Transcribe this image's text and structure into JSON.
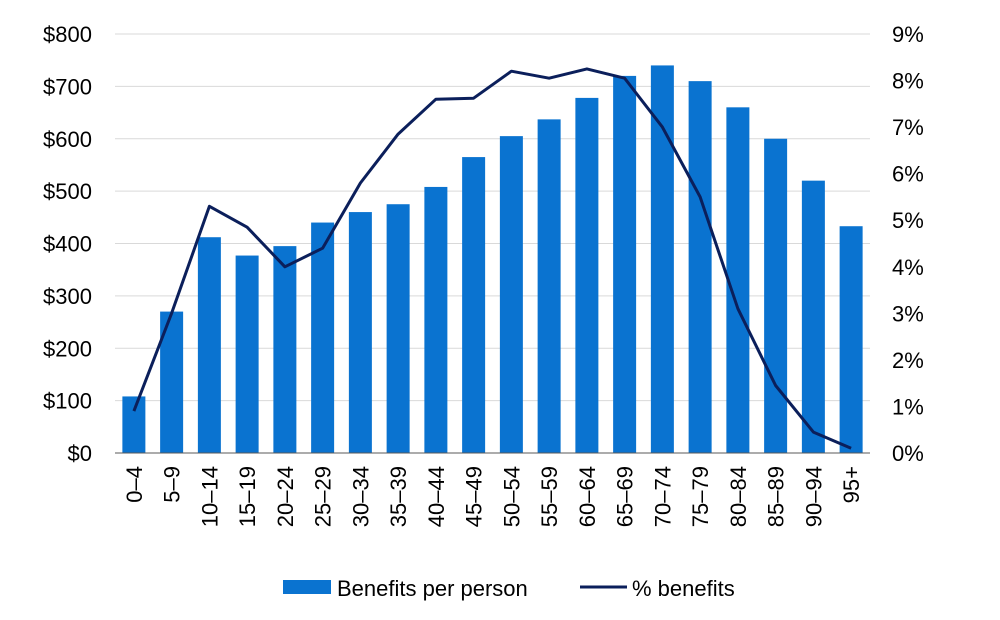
{
  "chart_data": {
    "type": "bar",
    "title": "",
    "xlabel": "",
    "ylabel": "",
    "y2label": "",
    "grid": true,
    "legend": "bottom",
    "categories": [
      "0–4",
      "5–9",
      "10–14",
      "15–19",
      "20–24",
      "25–29",
      "30–34",
      "35–39",
      "40–44",
      "45–49",
      "50–54",
      "55–59",
      "60–64",
      "65–69",
      "70–74",
      "75–79",
      "80–84",
      "85–89",
      "90–94",
      "95+"
    ],
    "y_axis": {
      "ylim": [
        0,
        800
      ],
      "ticks": [
        "$0",
        "$100",
        "$200",
        "$300",
        "$400",
        "$500",
        "$600",
        "$700",
        "$800"
      ]
    },
    "y2_axis": {
      "ylim": [
        0,
        9
      ],
      "ticks": [
        "0%",
        "1%",
        "2%",
        "3%",
        "4%",
        "5%",
        "6%",
        "7%",
        "8%",
        "9%"
      ]
    },
    "series": [
      {
        "name": "Benefits per person",
        "type": "bar",
        "axis": "left",
        "color": "#0A73D0",
        "values": [
          108,
          270,
          412,
          377,
          395,
          440,
          460,
          475,
          508,
          565,
          605,
          637,
          678,
          720,
          740,
          710,
          660,
          600,
          520,
          433
        ]
      },
      {
        "name": "% benefits",
        "type": "line",
        "axis": "right",
        "color": "#0B1F5B",
        "values": [
          0.9,
          3.0,
          5.3,
          4.85,
          4.0,
          4.4,
          5.8,
          6.85,
          7.6,
          7.62,
          8.2,
          8.05,
          8.25,
          8.05,
          7.0,
          5.5,
          3.1,
          1.45,
          0.45,
          0.1
        ]
      }
    ]
  }
}
